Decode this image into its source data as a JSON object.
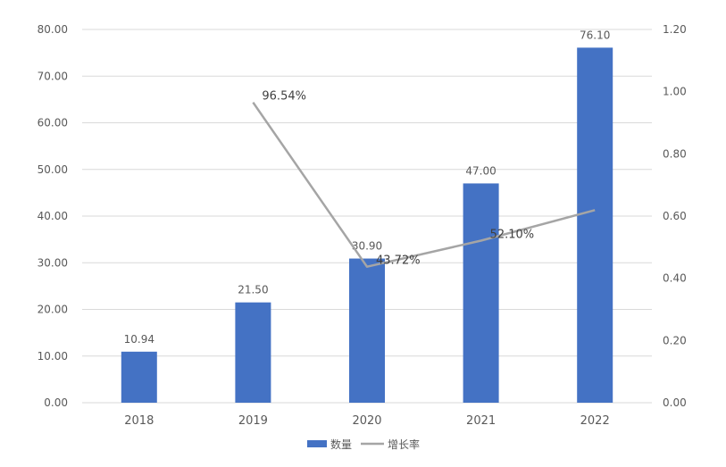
{
  "chart_data": {
    "type": "bar",
    "categories": [
      "2018",
      "2019",
      "2020",
      "2021",
      "2022"
    ],
    "series": [
      {
        "name": "数量",
        "type": "bar",
        "axis": "left",
        "values": [
          10.94,
          21.5,
          30.9,
          47.0,
          76.1
        ],
        "data_labels": [
          "10.94",
          "21.50",
          "30.90",
          "47.00",
          "76.10"
        ],
        "color": "#4472c4"
      },
      {
        "name": "增长率",
        "type": "line",
        "axis": "right",
        "values": [
          null,
          0.9654,
          0.4372,
          0.521,
          0.6191
        ],
        "data_labels": [
          null,
          "96.54%",
          "43.72%",
          "52.10%",
          null
        ],
        "color": "#a5a5a5"
      }
    ],
    "left_axis": {
      "ylim": [
        0,
        80
      ],
      "ticks": [
        "0.00",
        "10.00",
        "20.00",
        "30.00",
        "40.00",
        "50.00",
        "60.00",
        "70.00",
        "80.00"
      ]
    },
    "right_axis": {
      "ylim": [
        0,
        1.2
      ],
      "ticks": [
        "0.00",
        "0.20",
        "0.40",
        "0.60",
        "0.80",
        "1.00",
        "1.20"
      ]
    },
    "grid": true,
    "legend_position": "bottom",
    "title": "",
    "xlabel": "",
    "ylabel": ""
  }
}
